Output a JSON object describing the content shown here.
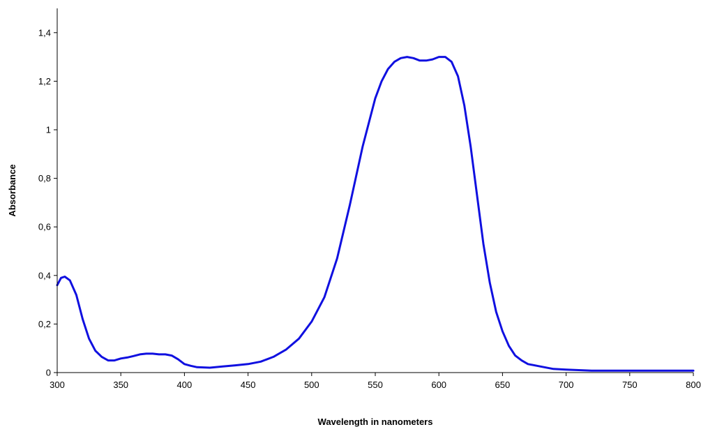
{
  "chart_data": {
    "type": "line",
    "title": "",
    "xlabel": "Wavelength in nanometers",
    "ylabel": "Absorbance",
    "xlim": [
      300,
      800
    ],
    "ylim": [
      0,
      1.5
    ],
    "grid": false,
    "legend": "none",
    "x_ticks": [
      300,
      350,
      400,
      450,
      500,
      550,
      600,
      650,
      700,
      750,
      800
    ],
    "x_tick_labels": [
      "300",
      "350",
      "400",
      "450",
      "500",
      "550",
      "600",
      "650",
      "700",
      "750",
      "800"
    ],
    "y_ticks": [
      0,
      0.2,
      0.4,
      0.6,
      0.8,
      1.0,
      1.2,
      1.4
    ],
    "y_tick_labels": [
      "0",
      "0,2",
      "0,4",
      "0,6",
      "0,8",
      "1",
      "1,2",
      "1,4"
    ],
    "series": [
      {
        "color": "#1010e0",
        "x": [
          300,
          303,
          306,
          310,
          315,
          320,
          325,
          330,
          335,
          340,
          345,
          350,
          355,
          360,
          365,
          370,
          375,
          380,
          385,
          390,
          395,
          400,
          405,
          410,
          420,
          430,
          440,
          450,
          460,
          470,
          480,
          490,
          500,
          510,
          520,
          530,
          540,
          550,
          555,
          560,
          565,
          570,
          575,
          580,
          585,
          590,
          595,
          600,
          605,
          610,
          615,
          620,
          625,
          630,
          635,
          640,
          645,
          650,
          655,
          660,
          665,
          670,
          680,
          690,
          700,
          710,
          720,
          740,
          760,
          780,
          800
        ],
        "y": [
          0.36,
          0.39,
          0.395,
          0.38,
          0.32,
          0.22,
          0.14,
          0.09,
          0.065,
          0.05,
          0.05,
          0.058,
          0.062,
          0.068,
          0.075,
          0.078,
          0.078,
          0.075,
          0.075,
          0.07,
          0.055,
          0.035,
          0.028,
          0.022,
          0.02,
          0.025,
          0.03,
          0.035,
          0.045,
          0.065,
          0.095,
          0.14,
          0.21,
          0.31,
          0.47,
          0.69,
          0.93,
          1.13,
          1.2,
          1.25,
          1.28,
          1.295,
          1.3,
          1.295,
          1.285,
          1.285,
          1.29,
          1.3,
          1.3,
          1.28,
          1.22,
          1.1,
          0.93,
          0.73,
          0.53,
          0.37,
          0.25,
          0.17,
          0.11,
          0.07,
          0.05,
          0.035,
          0.025,
          0.015,
          0.012,
          0.01,
          0.008,
          0.008,
          0.008,
          0.008,
          0.008
        ]
      }
    ]
  }
}
